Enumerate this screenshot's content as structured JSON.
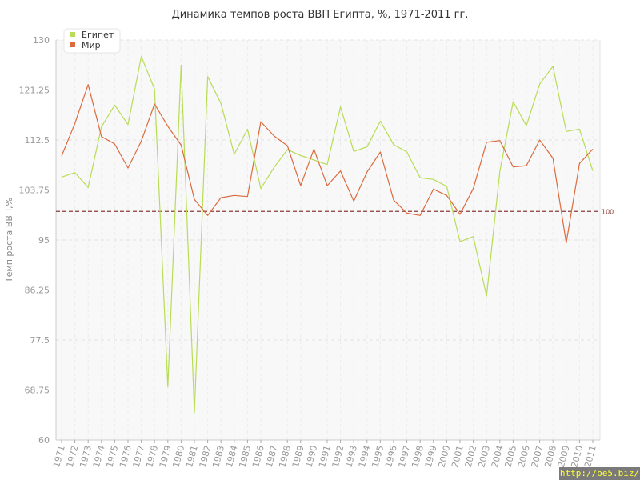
{
  "chart_data": {
    "type": "line",
    "title": "Динамика темпов роста ВВП Египта, %, 1971-2011 гг.",
    "xlabel": "",
    "ylabel": "Темп роста ВВП,%",
    "ylim": [
      60,
      130
    ],
    "y_ticks": [
      "60",
      "68.75",
      "77.5",
      "86.25",
      "95",
      "103.75",
      "112.5",
      "121.25",
      "130"
    ],
    "categories": [
      "1971",
      "1972",
      "1973",
      "1974",
      "1975",
      "1976",
      "1977",
      "1978",
      "1979",
      "1980",
      "1981",
      "1982",
      "1983",
      "1984",
      "1985",
      "1986",
      "1987",
      "1988",
      "1989",
      "1990",
      "1991",
      "1992",
      "1993",
      "1994",
      "1995",
      "1996",
      "1997",
      "1998",
      "1999",
      "2000",
      "2001",
      "2002",
      "2003",
      "2004",
      "2005",
      "2006",
      "2007",
      "2008",
      "2009",
      "2010",
      "2011"
    ],
    "series": [
      {
        "name": "Египет",
        "color": "#b8dc55",
        "values": [
          106.0,
          106.8,
          104.2,
          114.8,
          118.6,
          115.2,
          127.1,
          121.4,
          69.3,
          125.6,
          64.8,
          123.6,
          118.9,
          110.0,
          114.4,
          104.0,
          107.7,
          110.8,
          109.8,
          109.0,
          108.2,
          118.3,
          110.5,
          111.3,
          115.8,
          111.7,
          110.4,
          105.9,
          105.6,
          104.4,
          94.7,
          95.6,
          85.2,
          107.0,
          119.2,
          115.0,
          122.3,
          125.4,
          114.0,
          114.4,
          107.1
        ]
      },
      {
        "name": "Мир",
        "color": "#dc6a3c",
        "values": [
          109.7,
          115.4,
          122.2,
          113.1,
          111.8,
          107.6,
          112.3,
          118.8,
          114.9,
          111.6,
          102.1,
          99.3,
          102.4,
          102.8,
          102.6,
          115.7,
          113.2,
          111.5,
          104.5,
          110.9,
          104.5,
          107.1,
          101.8,
          106.9,
          110.4,
          102.0,
          99.7,
          99.3,
          103.9,
          102.8,
          99.5,
          104.0,
          112.1,
          112.4,
          107.8,
          108.0,
          112.5,
          109.3,
          94.5,
          108.4,
          110.9
        ]
      }
    ],
    "reference_line": {
      "value": 100,
      "label": "100",
      "color": "#8b3a3a",
      "style": "dashed"
    },
    "legend": {
      "position": "top-left"
    },
    "grid": true,
    "background": "#f8f8f8"
  },
  "watermark": {
    "text": "http://be5.biz/"
  }
}
